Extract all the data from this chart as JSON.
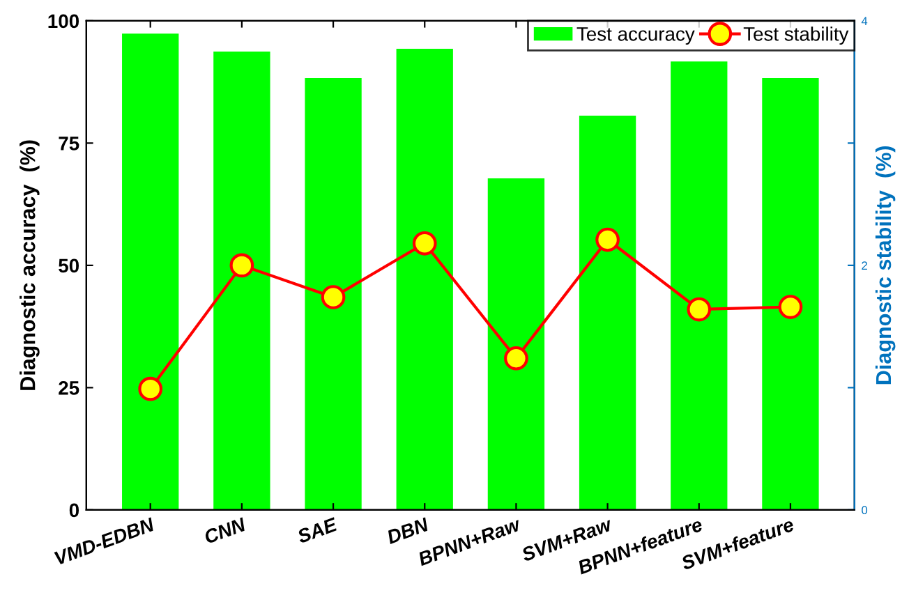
{
  "chart_data": {
    "type": "bar",
    "categories": [
      "VMD-EDBN",
      "CNN",
      "SAE",
      "DBN",
      "BPNN+Raw",
      "SVM+Raw",
      "BPNN+feature",
      "SVM+feature"
    ],
    "series": [
      {
        "name": "Test accuracy",
        "color": "#00ff00",
        "values": [
          97.4,
          93.7,
          88.3,
          94.3,
          67.8,
          80.6,
          91.7,
          88.3
        ]
      },
      {
        "name": "Test stability",
        "type": "line",
        "axis": "y2",
        "color": "#ff0000",
        "marker": "circle",
        "line_style": "solid",
        "values": [
          0.99,
          2.0,
          1.74,
          2.18,
          1.24,
          2.21,
          1.64,
          1.66
        ]
      }
    ],
    "ylabel": "Diagnostic accuracy  (%)",
    "y2label": "Diagnostic stability  (%)",
    "ylim": [
      0,
      100
    ],
    "yticks": [
      0,
      25,
      50,
      75,
      100
    ],
    "y2lim": [
      0,
      4
    ],
    "y2ticks": [
      0,
      {
        "value": 1,
        "label": null
      },
      2,
      {
        "value": 3,
        "label": null
      },
      4
    ],
    "legend": "top right",
    "grid": false
  }
}
